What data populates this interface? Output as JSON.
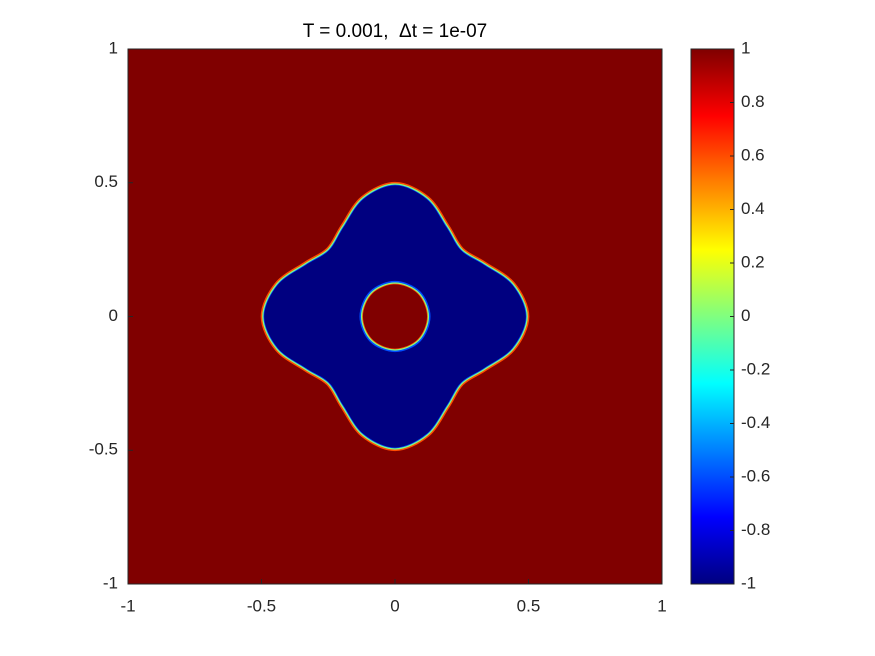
{
  "chart_data": {
    "type": "field",
    "title": "T = 0.001,  Δt = 1e-07",
    "colormap": "jet",
    "background_value": 1,
    "regions": [
      {
        "value": -1,
        "x": [
          0.49,
          0.439,
          0.333,
          0.247,
          0.193,
          0.118,
          0,
          -0.118,
          -0.193,
          -0.247,
          -0.333,
          -0.439,
          -0.49,
          -0.439,
          -0.333,
          -0.247,
          -0.193,
          -0.118,
          0,
          0.118,
          0.193,
          0.247,
          0.333,
          0.439
        ],
        "y": [
          0,
          0.118,
          0.193,
          0.247,
          0.333,
          0.439,
          0.49,
          0.439,
          0.333,
          0.247,
          0.193,
          0.118,
          0,
          -0.118,
          -0.193,
          -0.247,
          -0.333,
          -0.439,
          -0.49,
          -0.439,
          -0.333,
          -0.247,
          -0.193,
          -0.118
        ]
      },
      {
        "value": 1,
        "x": [
          0.12,
          0.085,
          0,
          -0.085,
          -0.12,
          -0.085,
          0,
          0.085
        ],
        "y": [
          0,
          0.085,
          0.12,
          0.085,
          0,
          -0.085,
          -0.12,
          -0.085
        ]
      }
    ],
    "xlim": [
      -1,
      1
    ],
    "xticks": [
      -1,
      -0.5,
      0,
      0.5,
      1
    ],
    "ylim": [
      -1,
      1
    ],
    "yticks": [
      -1,
      -0.5,
      0,
      0.5,
      1
    ],
    "clim": [
      -1,
      1
    ],
    "cticks": [
      -1,
      -0.8,
      -0.6,
      -0.4,
      -0.2,
      0,
      0.2,
      0.4,
      0.6,
      0.8,
      1
    ]
  }
}
